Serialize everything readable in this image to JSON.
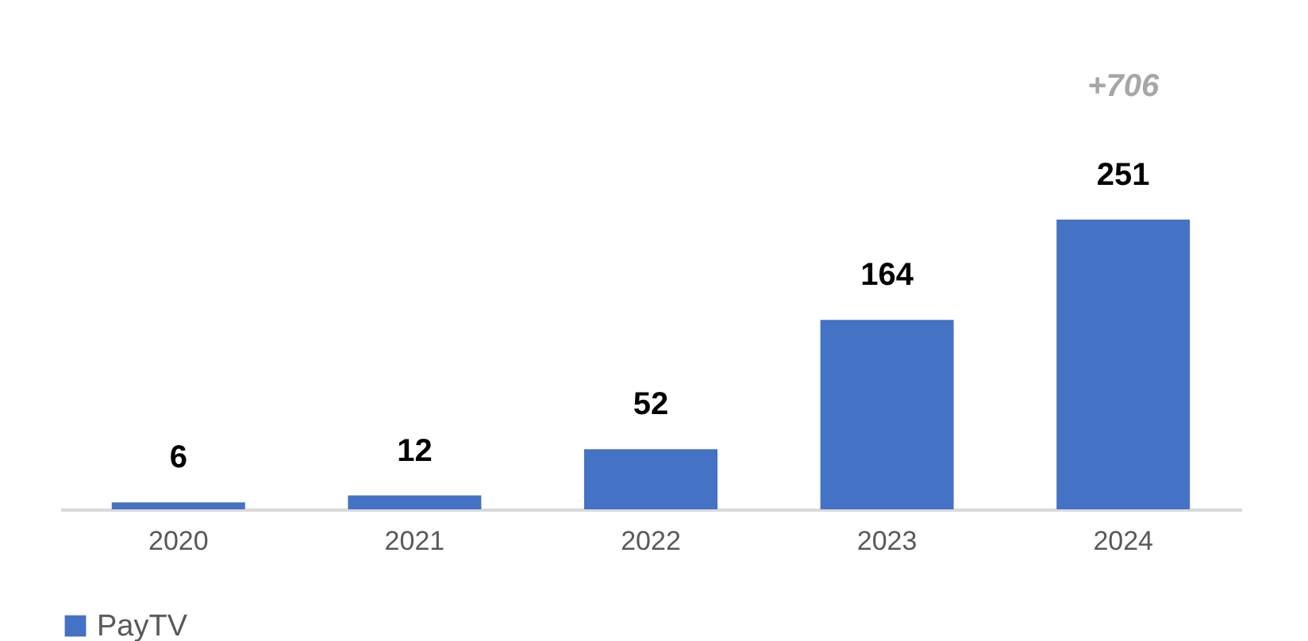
{
  "chart_data": {
    "type": "bar",
    "categories": [
      "2020",
      "2021",
      "2022",
      "2023",
      "2024"
    ],
    "series": [
      {
        "name": "PayTV",
        "color": "#4472c4",
        "values": [
          6,
          12,
          52,
          164,
          251
        ]
      }
    ],
    "data_labels": true,
    "legend": "bottom",
    "grid": false,
    "annotations": [
      "+706"
    ]
  }
}
